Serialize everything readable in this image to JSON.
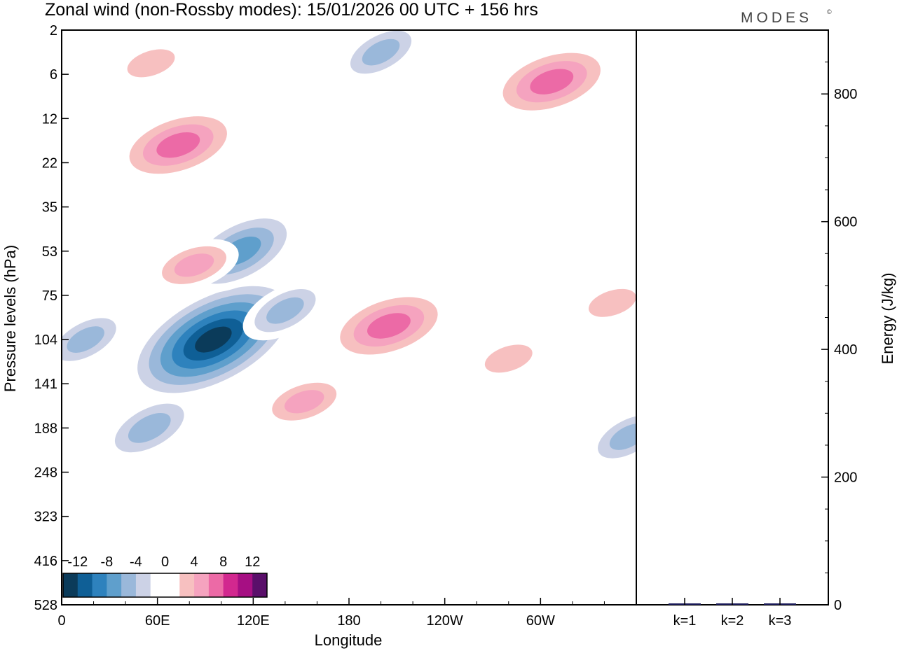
{
  "chart_data": {
    "type": "heatmap",
    "title": "Zonal wind (non-Rossby modes):  15/01/2026  00 UTC  + 156 hrs",
    "brand": "MODES",
    "brand_mark": "©",
    "xlabel": "Longitude",
    "ylabel": "Pressure levels (hPa)",
    "x_ticks": [
      "0",
      "60E",
      "120E",
      "180",
      "120W",
      "60W"
    ],
    "y_ticks": [
      "2",
      "6",
      "12",
      "22",
      "35",
      "53",
      "75",
      "104",
      "141",
      "188",
      "248",
      "323",
      "416",
      "528"
    ],
    "colorbar": {
      "labels": [
        "-12",
        "-8",
        "-4",
        "0",
        "4",
        "8",
        "12"
      ],
      "colors": [
        "#0b3b5a",
        "#0f5f96",
        "#2e82bd",
        "#5f9fcc",
        "#9ab8da",
        "#ccd2e6",
        "#ffffff",
        "#ffffff",
        "#f7c0c0",
        "#f5a3bf",
        "#ec6aa6",
        "#d2288f",
        "#a60f83",
        "#5a0f6a"
      ]
    },
    "features": [
      {
        "sign": "negative",
        "lon": 95,
        "level": 104,
        "peak": -14
      },
      {
        "sign": "negative",
        "lon": 112,
        "level": 53,
        "peak": -9
      },
      {
        "sign": "negative",
        "lon": 55,
        "level": 188,
        "peak": -7
      },
      {
        "sign": "negative",
        "lon": 15,
        "level": 104,
        "peak": -6
      },
      {
        "sign": "negative",
        "lon": 140,
        "level": 85,
        "peak": -6
      },
      {
        "sign": "negative",
        "lon": 200,
        "level": 4,
        "peak": -6
      },
      {
        "sign": "negative",
        "lon": 355,
        "level": 200,
        "peak": -6
      },
      {
        "sign": "positive",
        "lon": 205,
        "level": 95,
        "peak": 9
      },
      {
        "sign": "positive",
        "lon": 152,
        "level": 160,
        "peak": 6
      },
      {
        "sign": "positive",
        "lon": 73,
        "level": 18,
        "peak": 9
      },
      {
        "sign": "positive",
        "lon": 307,
        "level": 7,
        "peak": 9
      },
      {
        "sign": "positive",
        "lon": 56,
        "level": 5,
        "peak": 5
      },
      {
        "sign": "positive",
        "lon": 83,
        "level": 60,
        "peak": 6
      },
      {
        "sign": "positive",
        "lon": 280,
        "level": 120,
        "peak": 5
      },
      {
        "sign": "positive",
        "lon": 345,
        "level": 80,
        "peak": 5
      }
    ],
    "energy_panel": {
      "ylabel": "Energy (J/kg)",
      "y_ticks": [
        "0",
        "200",
        "400",
        "600",
        "800"
      ],
      "ylim": [
        0,
        900
      ],
      "categories": [
        "k=1",
        "k=2",
        "k=3"
      ],
      "values": [
        1.5,
        1.0,
        0.8
      ],
      "bar_color": "#1a1a5a"
    }
  }
}
